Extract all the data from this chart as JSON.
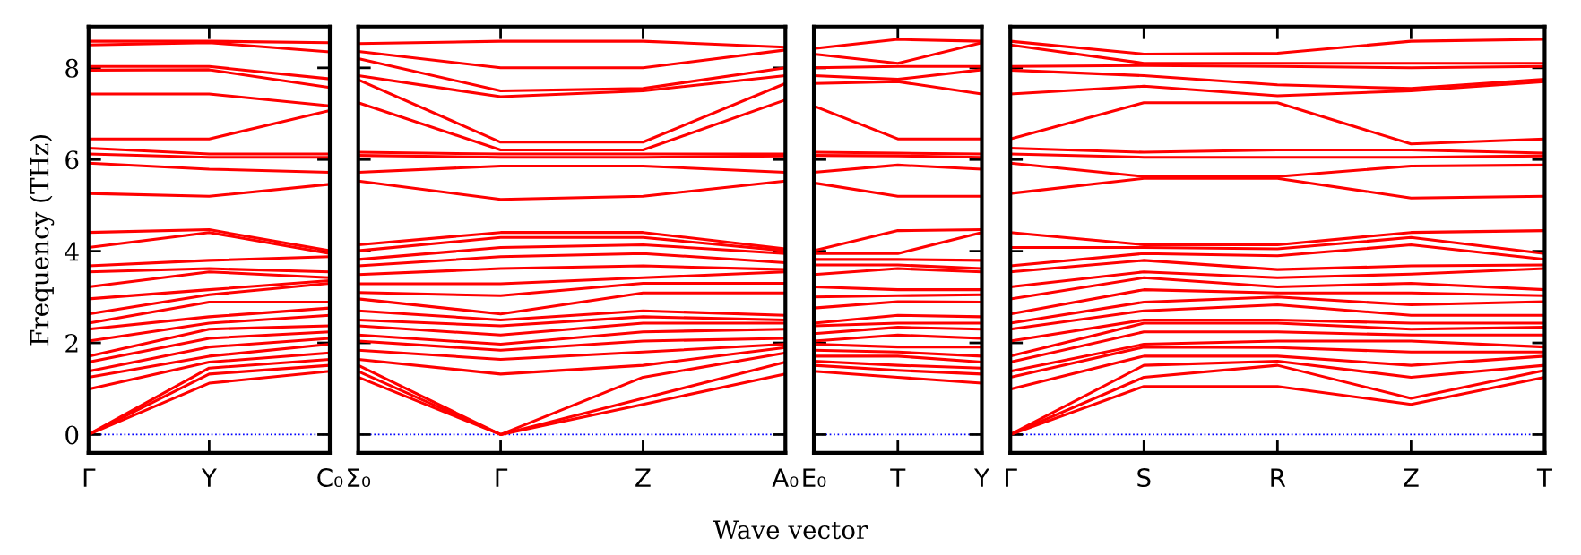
{
  "chart_data": [
    {
      "type": "line",
      "ylabel": "Frequency (THz)",
      "color": "#ff0000",
      "line_style": "solid",
      "categories": [
        "Γ",
        "Y",
        "C₀"
      ],
      "ylim": [
        -0.4,
        8.9
      ],
      "yticks": [
        0,
        2,
        4,
        6,
        8
      ],
      "ref_lines": [
        {
          "axis": "y",
          "value": 0,
          "color": "#0000ff",
          "line_style": "dotted"
        }
      ],
      "series": [
        {
          "values": [
            0,
            1.12,
            1.38
          ]
        },
        {
          "values": [
            0,
            1.32,
            1.51
          ]
        },
        {
          "values": [
            0,
            1.45,
            1.64
          ]
        },
        {
          "values": [
            0.99,
            1.58,
            1.78
          ]
        },
        {
          "values": [
            1.25,
            1.71,
            1.97
          ]
        },
        {
          "values": [
            1.38,
            1.91,
            2.1
          ]
        },
        {
          "values": [
            1.58,
            2.1,
            2.24
          ]
        },
        {
          "values": [
            1.71,
            2.3,
            2.37
          ]
        },
        {
          "values": [
            2.04,
            2.43,
            2.6
          ]
        },
        {
          "values": [
            2.3,
            2.57,
            2.76
          ]
        },
        {
          "values": [
            2.43,
            2.89,
            2.89
          ]
        },
        {
          "values": [
            2.63,
            3.05,
            3.3
          ]
        },
        {
          "values": [
            2.96,
            3.16,
            3.36
          ]
        },
        {
          "values": [
            3.22,
            3.55,
            3.42
          ]
        },
        {
          "values": [
            3.55,
            3.62,
            3.55
          ]
        },
        {
          "values": [
            3.68,
            3.8,
            3.88
          ]
        },
        {
          "values": [
            4.08,
            4.41,
            3.95
          ]
        },
        {
          "values": [
            4.41,
            4.47,
            4.01
          ]
        },
        {
          "values": [
            5.26,
            5.2,
            5.46
          ]
        },
        {
          "values": [
            5.92,
            5.79,
            5.72
          ]
        },
        {
          "values": [
            6.12,
            6.05,
            6.05
          ]
        },
        {
          "values": [
            6.25,
            6.12,
            6.12
          ]
        },
        {
          "values": [
            6.45,
            6.45,
            7.07
          ]
        },
        {
          "values": [
            7.43,
            7.43,
            7.17
          ]
        },
        {
          "values": [
            7.95,
            7.96,
            7.57
          ]
        },
        {
          "values": [
            8.03,
            8.03,
            7.76
          ]
        },
        {
          "values": [
            8.5,
            8.55,
            8.35
          ]
        },
        {
          "values": [
            8.58,
            8.58,
            8.55
          ]
        }
      ],
      "tick_labels": true
    },
    {
      "type": "line",
      "xlabel": "Wave vector",
      "color": "#ff0000",
      "line_style": "solid",
      "categories": [
        "Σ₀",
        "Γ",
        "Z",
        "A₀"
      ],
      "ylim": [
        -0.4,
        8.9
      ],
      "yticks": [
        0,
        2,
        4,
        6,
        8
      ],
      "tick_labels": "x",
      "ref_lines": [
        {
          "axis": "y",
          "value": 0,
          "color": "#0000ff",
          "line_style": "dotted"
        }
      ],
      "series": [
        {
          "values": [
            1.25,
            0,
            0.66,
            1.32
          ]
        },
        {
          "values": [
            1.38,
            0,
            0.79,
            1.58
          ]
        },
        {
          "values": [
            1.51,
            0,
            1.25,
            1.78
          ]
        },
        {
          "values": [
            1.64,
            1.32,
            1.51,
            1.9
          ]
        },
        {
          "values": [
            1.84,
            1.64,
            1.8,
            1.97
          ]
        },
        {
          "values": [
            2.04,
            1.84,
            2.04,
            2.1
          ]
        },
        {
          "values": [
            2.17,
            1.97,
            2.24,
            2.3
          ]
        },
        {
          "values": [
            2.37,
            2.17,
            2.43,
            2.43
          ]
        },
        {
          "values": [
            2.5,
            2.37,
            2.57,
            2.5
          ]
        },
        {
          "values": [
            2.7,
            2.5,
            2.7,
            2.6
          ]
        },
        {
          "values": [
            2.96,
            2.63,
            3.09,
            3.09
          ]
        },
        {
          "values": [
            3.1,
            3.03,
            3.3,
            3.3
          ]
        },
        {
          "values": [
            3.29,
            3.29,
            3.42,
            3.55
          ]
        },
        {
          "values": [
            3.49,
            3.62,
            3.68,
            3.6
          ]
        },
        {
          "values": [
            3.68,
            3.88,
            3.95,
            3.75
          ]
        },
        {
          "values": [
            3.82,
            4.08,
            4.14,
            3.95
          ]
        },
        {
          "values": [
            4.01,
            4.3,
            4.3,
            4.01
          ]
        },
        {
          "values": [
            4.14,
            4.41,
            4.41,
            4.05
          ]
        },
        {
          "values": [
            5.53,
            5.13,
            5.2,
            5.53
          ]
        },
        {
          "values": [
            5.72,
            5.86,
            5.86,
            5.72
          ]
        },
        {
          "values": [
            6.09,
            6.05,
            6.05,
            6.08
          ]
        },
        {
          "values": [
            6.16,
            6.12,
            6.12,
            6.12
          ]
        },
        {
          "values": [
            7.24,
            6.21,
            6.21,
            7.3
          ]
        },
        {
          "values": [
            7.74,
            6.38,
            6.38,
            7.66
          ]
        },
        {
          "values": [
            7.83,
            7.37,
            7.5,
            7.83
          ]
        },
        {
          "values": [
            8.2,
            7.5,
            7.55,
            8.0
          ]
        },
        {
          "values": [
            8.36,
            8.0,
            8.0,
            8.39
          ]
        },
        {
          "values": [
            8.53,
            8.58,
            8.58,
            8.45
          ]
        }
      ]
    },
    {
      "type": "line",
      "color": "#ff0000",
      "line_style": "solid",
      "categories": [
        "E₀",
        "T",
        "Y"
      ],
      "ylim": [
        -0.4,
        8.9
      ],
      "yticks": [
        0,
        2,
        4,
        6,
        8
      ],
      "tick_labels": "x",
      "ref_lines": [
        {
          "axis": "y",
          "value": 0,
          "color": "#0000ff",
          "line_style": "dotted"
        }
      ],
      "series": [
        {
          "values": [
            1.38,
            1.25,
            1.12
          ]
        },
        {
          "values": [
            1.51,
            1.4,
            1.32
          ]
        },
        {
          "values": [
            1.6,
            1.51,
            1.45
          ]
        },
        {
          "values": [
            1.71,
            1.71,
            1.58
          ]
        },
        {
          "values": [
            1.84,
            1.8,
            1.71
          ]
        },
        {
          "values": [
            1.97,
            1.91,
            1.91
          ]
        },
        {
          "values": [
            2.04,
            2.17,
            2.1
          ]
        },
        {
          "values": [
            2.2,
            2.34,
            2.3
          ]
        },
        {
          "values": [
            2.37,
            2.43,
            2.43
          ]
        },
        {
          "values": [
            2.43,
            2.6,
            2.57
          ]
        },
        {
          "values": [
            2.76,
            2.9,
            2.89
          ]
        },
        {
          "values": [
            3.0,
            3.03,
            3.05
          ]
        },
        {
          "values": [
            3.22,
            3.16,
            3.16
          ]
        },
        {
          "values": [
            3.49,
            3.62,
            3.55
          ]
        },
        {
          "values": [
            3.7,
            3.7,
            3.62
          ]
        },
        {
          "values": [
            3.82,
            3.82,
            3.8
          ]
        },
        {
          "values": [
            3.95,
            3.95,
            4.41
          ]
        },
        {
          "values": [
            4.01,
            4.45,
            4.47
          ]
        },
        {
          "values": [
            5.49,
            5.2,
            5.2
          ]
        },
        {
          "values": [
            5.72,
            5.88,
            5.79
          ]
        },
        {
          "values": [
            6.09,
            6.08,
            6.05
          ]
        },
        {
          "values": [
            6.16,
            6.14,
            6.12
          ]
        },
        {
          "values": [
            7.17,
            6.45,
            6.45
          ]
        },
        {
          "values": [
            7.66,
            7.7,
            7.43
          ]
        },
        {
          "values": [
            7.83,
            7.75,
            7.96
          ]
        },
        {
          "values": [
            8.0,
            8.03,
            8.03
          ]
        },
        {
          "values": [
            8.3,
            8.1,
            8.55
          ]
        },
        {
          "values": [
            8.42,
            8.62,
            8.58
          ]
        }
      ]
    },
    {
      "type": "line",
      "color": "#ff0000",
      "line_style": "solid",
      "categories": [
        "Γ",
        "S",
        "R",
        "Z",
        "T"
      ],
      "ylim": [
        -0.4,
        8.9
      ],
      "yticks": [
        0,
        2,
        4,
        6,
        8
      ],
      "tick_labels": "x",
      "ref_lines": [
        {
          "axis": "y",
          "value": 0,
          "color": "#0000ff",
          "line_style": "dotted"
        }
      ],
      "series": [
        {
          "values": [
            0,
            1.05,
            1.05,
            0.66,
            1.25
          ]
        },
        {
          "values": [
            0,
            1.25,
            1.51,
            0.79,
            1.4
          ]
        },
        {
          "values": [
            0,
            1.51,
            1.6,
            1.25,
            1.51
          ]
        },
        {
          "values": [
            0.99,
            1.71,
            1.71,
            1.51,
            1.71
          ]
        },
        {
          "values": [
            1.25,
            1.91,
            1.9,
            1.8,
            1.8
          ]
        },
        {
          "values": [
            1.38,
            1.97,
            2.04,
            2.04,
            1.91
          ]
        },
        {
          "values": [
            1.58,
            2.24,
            2.24,
            2.17,
            2.17
          ]
        },
        {
          "values": [
            1.71,
            2.43,
            2.43,
            2.3,
            2.34
          ]
        },
        {
          "values": [
            2.04,
            2.5,
            2.5,
            2.43,
            2.43
          ]
        },
        {
          "values": [
            2.3,
            2.7,
            2.83,
            2.6,
            2.6
          ]
        },
        {
          "values": [
            2.43,
            2.89,
            3.0,
            2.83,
            2.9
          ]
        },
        {
          "values": [
            2.63,
            3.16,
            3.09,
            3.09,
            3.03
          ]
        },
        {
          "values": [
            2.96,
            3.42,
            3.22,
            3.3,
            3.16
          ]
        },
        {
          "values": [
            3.22,
            3.55,
            3.42,
            3.5,
            3.62
          ]
        },
        {
          "values": [
            3.55,
            3.8,
            3.6,
            3.68,
            3.7
          ]
        },
        {
          "values": [
            3.68,
            3.95,
            3.9,
            4.14,
            3.82
          ]
        },
        {
          "values": [
            4.08,
            4.08,
            4.05,
            4.3,
            3.95
          ]
        },
        {
          "values": [
            4.41,
            4.14,
            4.14,
            4.41,
            4.45
          ]
        },
        {
          "values": [
            5.26,
            5.59,
            5.59,
            5.16,
            5.2
          ]
        },
        {
          "values": [
            5.92,
            5.63,
            5.63,
            5.86,
            5.88
          ]
        },
        {
          "values": [
            6.12,
            6.05,
            6.05,
            6.05,
            6.08
          ]
        },
        {
          "values": [
            6.25,
            6.16,
            6.21,
            6.21,
            6.14
          ]
        },
        {
          "values": [
            6.45,
            7.24,
            7.24,
            6.34,
            6.45
          ]
        },
        {
          "values": [
            7.43,
            7.6,
            7.39,
            7.5,
            7.7
          ]
        },
        {
          "values": [
            7.95,
            7.83,
            7.63,
            7.55,
            7.75
          ]
        },
        {
          "values": [
            8.03,
            8.05,
            8.03,
            8.0,
            8.03
          ]
        },
        {
          "values": [
            8.5,
            8.1,
            8.1,
            8.1,
            8.1
          ]
        },
        {
          "values": [
            8.58,
            8.3,
            8.32,
            8.58,
            8.62
          ]
        }
      ]
    }
  ]
}
